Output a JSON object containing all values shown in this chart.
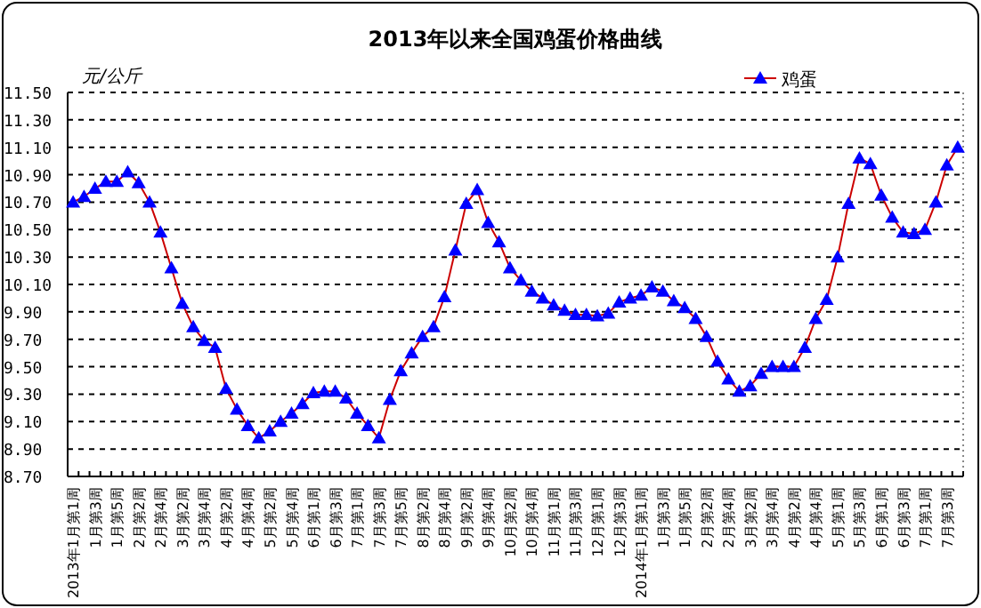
{
  "chart_data": {
    "type": "line",
    "title": "2013年以来全国鸡蛋价格曲线",
    "ylabel": "元/公斤",
    "categories": [
      "2013年1月第1周",
      null,
      "1月第3周",
      null,
      "1月第5周",
      null,
      "2月第2周",
      null,
      "2月第4周",
      null,
      "3月第2周",
      null,
      "3月第4周",
      null,
      "4月第2周",
      null,
      "4月第4周",
      null,
      "5月第2周",
      null,
      "5月第4周",
      null,
      "6月第1周",
      null,
      "6月第3周",
      null,
      "7月第1周",
      null,
      "7月第3周",
      null,
      "7月第5周",
      null,
      "8月第2周",
      null,
      "8月第4周",
      null,
      "9月第2周",
      null,
      "9月第4周",
      null,
      "10月第2周",
      null,
      "10月第4周",
      null,
      "11月第1周",
      null,
      "11月第3周",
      null,
      "12月第1周",
      null,
      "12月第3周",
      null,
      "2014年1月第1周",
      null,
      "1月第3周",
      null,
      "1月第5周",
      null,
      "2月第2周",
      null,
      "2月第4周",
      null,
      "3月第2周",
      null,
      "3月第4周",
      null,
      "4月第2周",
      null,
      "4月第4周",
      null,
      "5月第1周",
      null,
      "5月第3周",
      null,
      "6月第1周",
      null,
      "6月第3周",
      null,
      "7月第1周",
      null,
      "7月第3周",
      null
    ],
    "series": [
      {
        "name": "鸡蛋",
        "color": "#0000ff",
        "values": [
          10.7,
          10.74,
          10.8,
          10.85,
          10.85,
          10.92,
          10.84,
          10.7,
          10.48,
          10.22,
          9.96,
          9.79,
          9.69,
          9.64,
          9.34,
          9.19,
          9.07,
          8.98,
          9.03,
          9.1,
          9.16,
          9.23,
          9.31,
          9.32,
          9.32,
          9.27,
          9.16,
          9.07,
          8.98,
          9.26,
          9.47,
          9.6,
          9.72,
          9.79,
          10.01,
          10.35,
          10.69,
          10.79,
          10.55,
          10.41,
          10.22,
          10.13,
          10.05,
          10.0,
          9.95,
          9.91,
          9.88,
          9.88,
          9.87,
          9.89,
          9.97,
          10.0,
          10.02,
          10.08,
          10.05,
          9.98,
          9.93,
          9.85,
          9.72,
          9.54,
          9.41,
          9.32,
          9.36,
          9.45,
          9.5,
          9.5,
          9.5,
          9.64,
          9.85,
          9.99,
          10.3,
          10.69,
          11.02,
          10.98,
          10.75,
          10.59,
          10.48,
          10.47,
          10.5,
          10.7,
          10.97,
          11.1
        ]
      }
    ],
    "ylim": [
      8.7,
      11.5
    ],
    "yticks": [
      {
        "value": 8.7,
        "label": "8.70"
      },
      {
        "value": 8.9,
        "label": "8.90"
      },
      {
        "value": 9.1,
        "label": "9.10"
      },
      {
        "value": 9.3,
        "label": "9.30"
      },
      {
        "value": 9.5,
        "label": "9.50"
      },
      {
        "value": 9.7,
        "label": "9.70"
      },
      {
        "value": 9.9,
        "label": "9.90"
      },
      {
        "value": 10.1,
        "label": "10.10"
      },
      {
        "value": 10.3,
        "label": "10.30"
      },
      {
        "value": 10.5,
        "label": "10.50"
      },
      {
        "value": 10.7,
        "label": "10.70"
      },
      {
        "value": 10.9,
        "label": "10.90"
      },
      {
        "value": 11.1,
        "label": "11.10"
      },
      {
        "value": 11.3,
        "label": "11.30"
      },
      {
        "value": 11.5,
        "label": "11.50"
      }
    ],
    "grid": "y",
    "legend": "top right",
    "marker": "triangle",
    "line_style": "solid"
  }
}
